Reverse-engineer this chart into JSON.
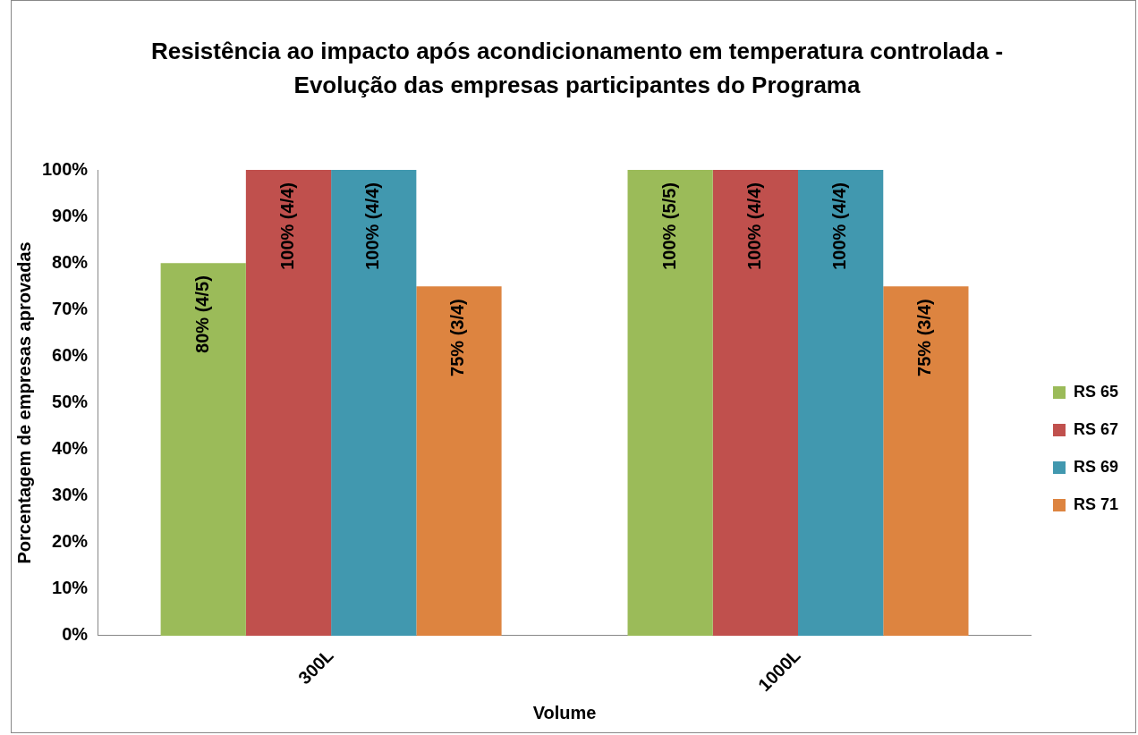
{
  "chart_data": {
    "type": "bar",
    "title": "Resistência ao impacto após acondicionamento em temperatura controlada - Evolução das empresas participantes do Programa",
    "xlabel": "Volume",
    "ylabel": "Porcentagem de empresas aprovadas",
    "categories": [
      "300L",
      "1000L"
    ],
    "series": [
      {
        "name": "RS 65",
        "color": "#9bbb59",
        "values": [
          80,
          100
        ],
        "value_labels": [
          "80% (4/5)",
          "100% (5/5)"
        ]
      },
      {
        "name": "RS 67",
        "color": "#c0504d",
        "values": [
          100,
          100
        ],
        "value_labels": [
          "100% (4/4)",
          "100% (4/4)"
        ]
      },
      {
        "name": "RS 69",
        "color": "#4198af",
        "values": [
          100,
          100
        ],
        "value_labels": [
          "100% (4/4)",
          "100% (4/4)"
        ]
      },
      {
        "name": "RS 71",
        "color": "#dd8440",
        "values": [
          75,
          75
        ],
        "value_labels": [
          "75% (3/4)",
          "75% (3/4)"
        ]
      }
    ],
    "ylim": [
      0,
      100
    ],
    "yticks": [
      {
        "value": 0,
        "label": "0%"
      },
      {
        "value": 10,
        "label": "10%"
      },
      {
        "value": 20,
        "label": "20%"
      },
      {
        "value": 30,
        "label": "30%"
      },
      {
        "value": 40,
        "label": "40%"
      },
      {
        "value": 50,
        "label": "50%"
      },
      {
        "value": 60,
        "label": "60%"
      },
      {
        "value": 70,
        "label": "70%"
      },
      {
        "value": 80,
        "label": "80%"
      },
      {
        "value": 90,
        "label": "90%"
      },
      {
        "value": 100,
        "label": "100%"
      }
    ],
    "grid": false,
    "legend": "right"
  }
}
